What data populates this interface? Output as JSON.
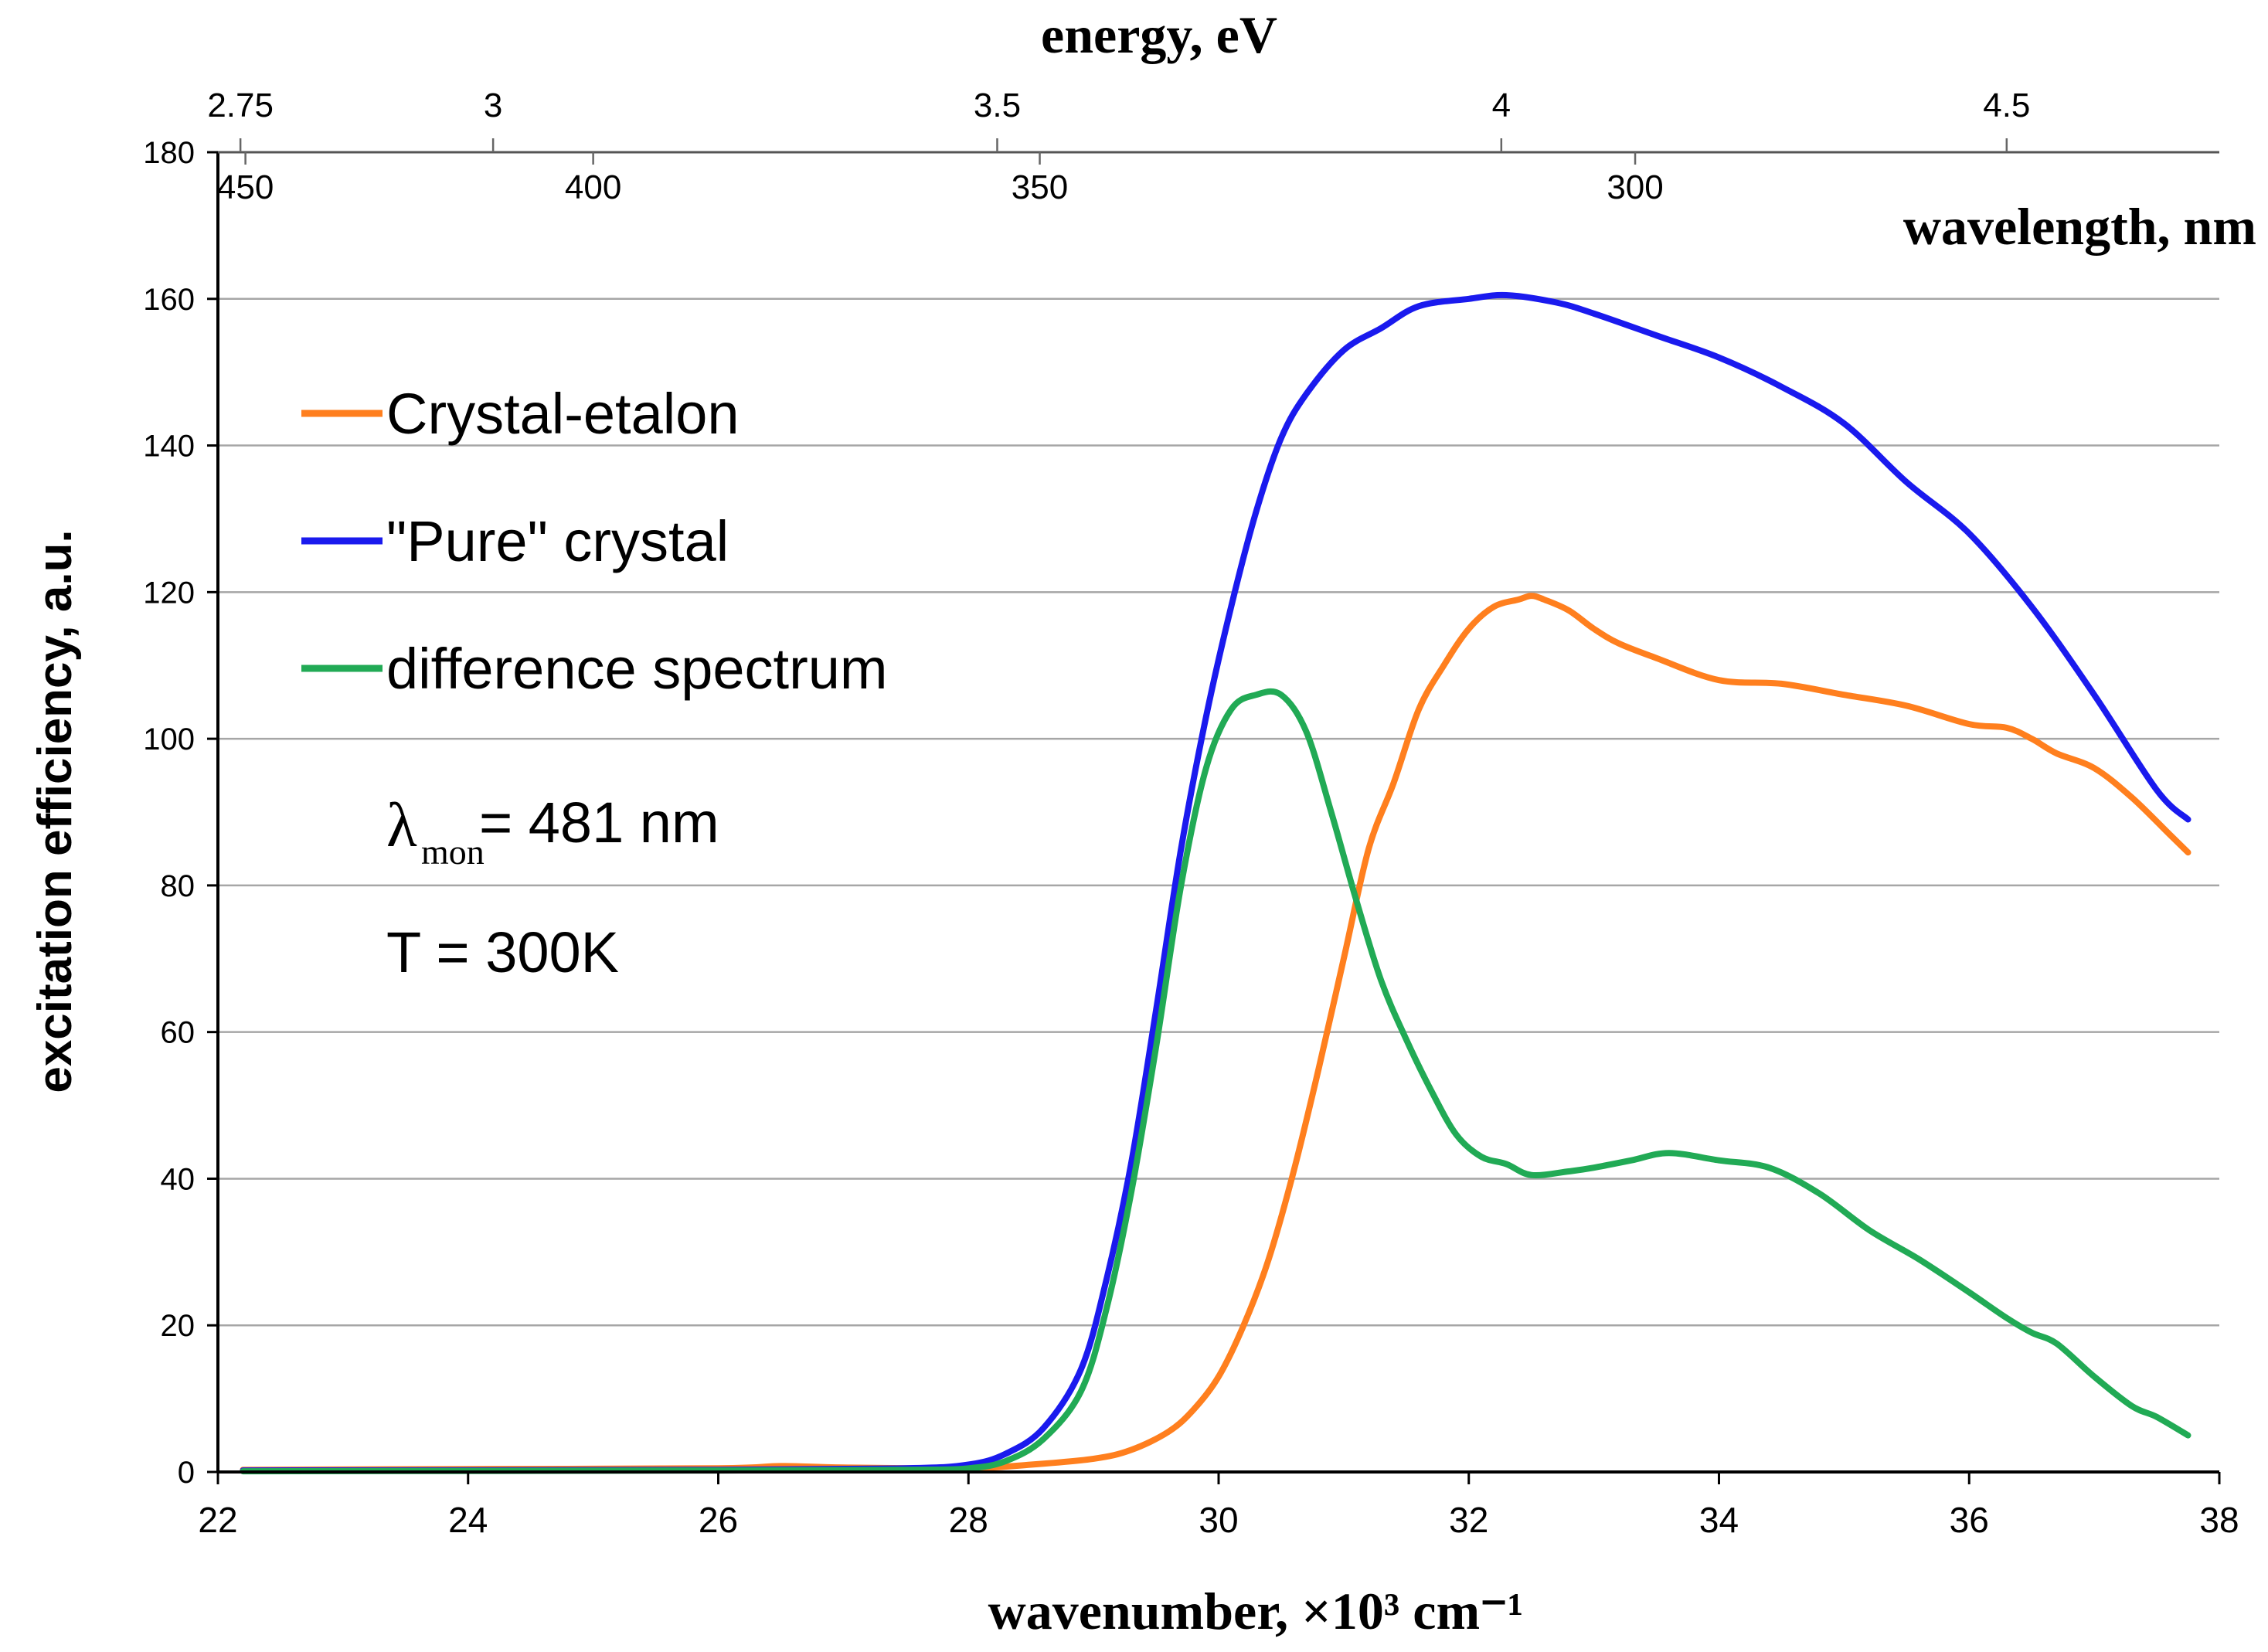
{
  "chart_data": {
    "type": "line",
    "xlabel": "wavenumber, ×10³ cm⁻¹",
    "ylabel": "excitation efficiency, a.u.",
    "xlim": [
      22,
      38
    ],
    "ylim": [
      0,
      180
    ],
    "xticks": [
      "22",
      "24",
      "26",
      "28",
      "30",
      "32",
      "34",
      "36",
      "38"
    ],
    "yticks": [
      "0",
      "20",
      "40",
      "60",
      "80",
      "100",
      "120",
      "140",
      "160",
      "180"
    ],
    "grid": true,
    "top_axis_energy": {
      "label": "energy, eV",
      "ticks": [
        {
          "label": "2.75",
          "wavenumber": 22.18
        },
        {
          "label": "3",
          "wavenumber": 24.2
        },
        {
          "label": "3.5",
          "wavenumber": 28.23
        },
        {
          "label": "4",
          "wavenumber": 32.26
        },
        {
          "label": "4.5",
          "wavenumber": 36.3
        }
      ]
    },
    "top_axis_wavelength": {
      "label": "wavelength, nm",
      "ticks": [
        {
          "label": "450",
          "wavenumber": 22.22
        },
        {
          "label": "400",
          "wavenumber": 25.0
        },
        {
          "label": "350",
          "wavenumber": 28.57
        },
        {
          "label": "300",
          "wavenumber": 33.33
        }
      ]
    },
    "series": [
      {
        "name": "Crystal-etalon",
        "color": "#ff7f1e",
        "x": [
          22.2,
          24,
          26,
          26.5,
          27,
          28,
          28.5,
          29,
          29.3,
          29.6,
          29.8,
          30,
          30.2,
          30.4,
          30.6,
          30.8,
          31,
          31.2,
          31.4,
          31.6,
          31.8,
          32,
          32.2,
          32.4,
          32.5,
          32.6,
          32.8,
          33,
          33.2,
          33.5,
          34,
          34.5,
          35,
          35.5,
          36,
          36.3,
          36.5,
          36.7,
          37,
          37.3,
          37.6,
          37.75
        ],
        "values": [
          0.3,
          0.4,
          0.5,
          0.8,
          0.6,
          0.5,
          1.0,
          1.8,
          3.0,
          5.5,
          8.5,
          13,
          20,
          29,
          41,
          55,
          70,
          85,
          94,
          104,
          110,
          115,
          118,
          119,
          119.5,
          119,
          117.5,
          115,
          113,
          111,
          108,
          107.5,
          106,
          104.5,
          102,
          101.5,
          100,
          98,
          96,
          92,
          87,
          84.5
        ]
      },
      {
        "name": "\"Pure\" crystal",
        "color": "#1a1aee",
        "x": [
          22.2,
          26,
          27.5,
          28,
          28.3,
          28.6,
          28.9,
          29.1,
          29.3,
          29.5,
          29.7,
          29.9,
          30.1,
          30.3,
          30.5,
          30.7,
          31,
          31.3,
          31.6,
          32,
          32.3,
          32.7,
          33,
          33.5,
          34,
          34.5,
          35,
          35.5,
          36,
          36.5,
          37,
          37.5,
          37.75
        ],
        "values": [
          0.2,
          0.3,
          0.5,
          1.0,
          2.5,
          6,
          14,
          26,
          42,
          63,
          85,
          103,
          118,
          131,
          141,
          147,
          153,
          156,
          159,
          160,
          160.5,
          159.5,
          158,
          155,
          152,
          148,
          143,
          135,
          128,
          118,
          106,
          93,
          89
        ]
      },
      {
        "name": "difference spectrum",
        "color": "#21aa55",
        "x": [
          22.2,
          26,
          27.5,
          28,
          28.3,
          28.6,
          28.9,
          29.1,
          29.3,
          29.5,
          29.7,
          29.9,
          30.1,
          30.3,
          30.5,
          30.7,
          30.9,
          31.1,
          31.3,
          31.5,
          31.7,
          31.9,
          32.1,
          32.3,
          32.5,
          32.8,
          33,
          33.3,
          33.6,
          34,
          34.4,
          34.8,
          35.2,
          35.6,
          36,
          36.3,
          36.5,
          36.7,
          37,
          37.3,
          37.5,
          37.75
        ],
        "values": [
          0.1,
          0.2,
          0.3,
          0.5,
          1.5,
          4.5,
          11,
          22,
          38,
          58,
          80,
          96,
          104,
          106,
          106,
          101,
          90,
          78,
          67,
          59,
          52,
          46,
          43,
          42,
          40.5,
          41,
          41.5,
          42.5,
          43.5,
          42.5,
          41.5,
          38,
          33,
          29,
          24.5,
          21,
          19,
          17.5,
          13,
          9,
          7.5,
          5
        ]
      }
    ],
    "annotations": {
      "lambda_symbol": "λ",
      "lambda_subscript": "mon",
      "lambda_value": "= 481 nm",
      "temperature": "T = 300K"
    }
  }
}
